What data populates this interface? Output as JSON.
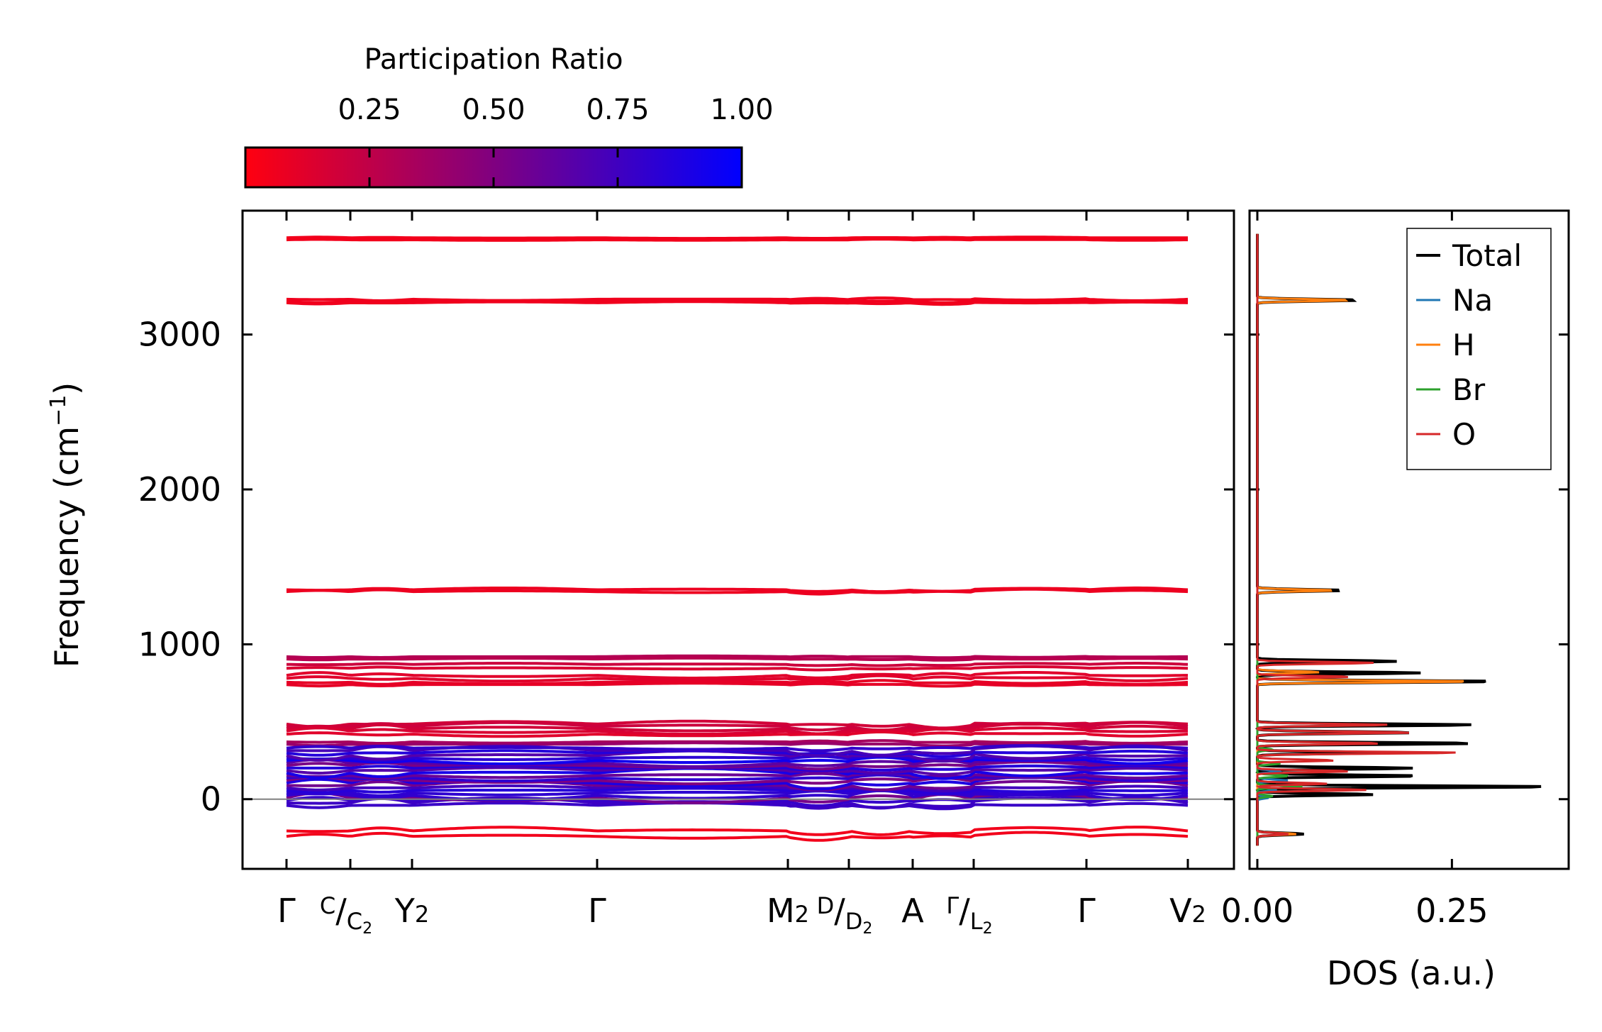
{
  "chart_data": {
    "type": "line",
    "colorbar": {
      "title": "Participation Ratio",
      "ticks": [
        0.25,
        0.5,
        0.75,
        1.0
      ],
      "tick_labels": [
        "0.25",
        "0.50",
        "0.75",
        "1.00"
      ],
      "range": [
        0.0,
        1.0
      ],
      "colors": {
        "low": "#ff0010",
        "mid": "#800080",
        "high": "#0000ff"
      }
    },
    "band_panel": {
      "ylabel": "Frequency (cm",
      "ylabel_sup": "−1",
      "ylabel_close": ")",
      "ylim": [
        -450,
        3800
      ],
      "yticks": [
        0,
        1000,
        2000,
        3000
      ],
      "ytick_labels": [
        "0",
        "1000",
        "2000",
        "3000"
      ],
      "zero_line": 0,
      "kpoint_labels": [
        {
          "main": "Γ"
        },
        {
          "pre": "C",
          "slash": "/",
          "sub_pre": "C",
          "sub": "2"
        },
        {
          "main": "Y",
          "sub": "2"
        },
        {
          "main": "Γ"
        },
        {
          "main": "M",
          "sub": "2"
        },
        {
          "pre": "D",
          "slash": "/",
          "sub_pre": "D",
          "sub": "2"
        },
        {
          "main": "A"
        },
        {
          "pre": "Γ",
          "slash": "/",
          "sub_pre": "L",
          "sub": "2"
        },
        {
          "main": "Γ"
        },
        {
          "main": "V",
          "sub": "2"
        }
      ],
      "segment_breaks": [
        1,
        2,
        3,
        4,
        5,
        6,
        7,
        8
      ],
      "discontinuities": [
        4,
        6,
        7
      ],
      "x_ticks": [
        0,
        1,
        2,
        3,
        4,
        5,
        6,
        7,
        8,
        9
      ],
      "bands_high": [
        {
          "freq": 3625,
          "pr": 0.05,
          "amp": 4
        },
        {
          "freq": 3612,
          "pr": 0.05,
          "amp": 4
        },
        {
          "freq": 3228,
          "pr": 0.06,
          "amp": 10
        },
        {
          "freq": 3215,
          "pr": 0.06,
          "amp": 10
        },
        {
          "freq": 3205,
          "pr": 0.06,
          "amp": 8
        },
        {
          "freq": 1352,
          "pr": 0.07,
          "amp": 12
        },
        {
          "freq": 1340,
          "pr": 0.07,
          "amp": 12
        }
      ],
      "bands_mid": [
        {
          "freq": 920,
          "pr": 0.3,
          "amp": 6
        },
        {
          "freq": 905,
          "pr": 0.28,
          "amp": 6
        },
        {
          "freq": 870,
          "pr": 0.2,
          "amp": 8
        },
        {
          "freq": 845,
          "pr": 0.15,
          "amp": 8
        },
        {
          "freq": 800,
          "pr": 0.12,
          "amp": 18
        },
        {
          "freq": 780,
          "pr": 0.12,
          "amp": 18
        },
        {
          "freq": 755,
          "pr": 0.1,
          "amp": 14
        },
        {
          "freq": 740,
          "pr": 0.1,
          "amp": 10
        },
        {
          "freq": 485,
          "pr": 0.18,
          "amp": 20
        },
        {
          "freq": 470,
          "pr": 0.2,
          "amp": 25
        },
        {
          "freq": 455,
          "pr": 0.18,
          "amp": 25
        },
        {
          "freq": 440,
          "pr": 0.15,
          "amp": 20
        },
        {
          "freq": 420,
          "pr": 0.12,
          "amp": 15
        },
        {
          "freq": 370,
          "pr": 0.35,
          "amp": 10
        },
        {
          "freq": 355,
          "pr": 0.4,
          "amp": 10
        }
      ],
      "low_band_count": 24,
      "low_band_range": [
        -40,
        330
      ],
      "imag_bands": [
        {
          "freq": -205,
          "pr": 0.05,
          "amp": 25
        },
        {
          "freq": -240,
          "pr": 0.05,
          "amp": 20
        }
      ]
    },
    "dos_panel": {
      "xlabel": "DOS (a.u.)",
      "xlim": [
        -0.01,
        0.4
      ],
      "xticks": [
        0.0,
        0.25
      ],
      "xtick_labels": [
        "0.00",
        "0.25"
      ],
      "series": [
        {
          "name": "Total",
          "color": "#000000",
          "peaks": [
            {
              "f": 3222,
              "a": 0.13
            },
            {
              "f": 1348,
              "a": 0.11
            },
            {
              "f": 890,
              "a": 0.18
            },
            {
              "f": 815,
              "a": 0.21
            },
            {
              "f": 760,
              "a": 0.31
            },
            {
              "f": 480,
              "a": 0.28
            },
            {
              "f": 430,
              "a": 0.2
            },
            {
              "f": 360,
              "a": 0.28
            },
            {
              "f": 300,
              "a": 0.17
            },
            {
              "f": 200,
              "a": 0.2
            },
            {
              "f": 150,
              "a": 0.21
            },
            {
              "f": 80,
              "a": 0.38
            },
            {
              "f": 30,
              "a": 0.15
            },
            {
              "f": -225,
              "a": 0.06
            }
          ]
        },
        {
          "name": "Na",
          "color": "#1f77b4",
          "peaks": [
            {
              "f": 180,
              "a": 0.03
            },
            {
              "f": 120,
              "a": 0.04
            },
            {
              "f": 60,
              "a": 0.025
            },
            {
              "f": 10,
              "a": 0.015
            }
          ]
        },
        {
          "name": "H",
          "color": "#ff7f0e",
          "peaks": [
            {
              "f": 3222,
              "a": 0.12
            },
            {
              "f": 1348,
              "a": 0.1
            },
            {
              "f": 760,
              "a": 0.28
            },
            {
              "f": 820,
              "a": 0.08
            },
            {
              "f": -225,
              "a": 0.05
            }
          ]
        },
        {
          "name": "Br",
          "color": "#2ca02c",
          "peaks": [
            {
              "f": 320,
              "a": 0.02
            },
            {
              "f": 230,
              "a": 0.03
            },
            {
              "f": 150,
              "a": 0.04
            },
            {
              "f": 80,
              "a": 0.06
            },
            {
              "f": 20,
              "a": 0.02
            }
          ]
        },
        {
          "name": "O",
          "color": "#d62728",
          "peaks": [
            {
              "f": 880,
              "a": 0.15
            },
            {
              "f": 790,
              "a": 0.12
            },
            {
              "f": 480,
              "a": 0.17
            },
            {
              "f": 430,
              "a": 0.2
            },
            {
              "f": 360,
              "a": 0.16
            },
            {
              "f": 300,
              "a": 0.26
            },
            {
              "f": 250,
              "a": 0.1
            },
            {
              "f": 180,
              "a": 0.12
            },
            {
              "f": 100,
              "a": 0.09
            },
            {
              "f": 60,
              "a": 0.14
            },
            {
              "f": -225,
              "a": 0.04
            }
          ]
        }
      ]
    },
    "legend": {
      "position": "top-right",
      "entries": [
        "Total",
        "Na",
        "H",
        "Br",
        "O"
      ]
    }
  }
}
